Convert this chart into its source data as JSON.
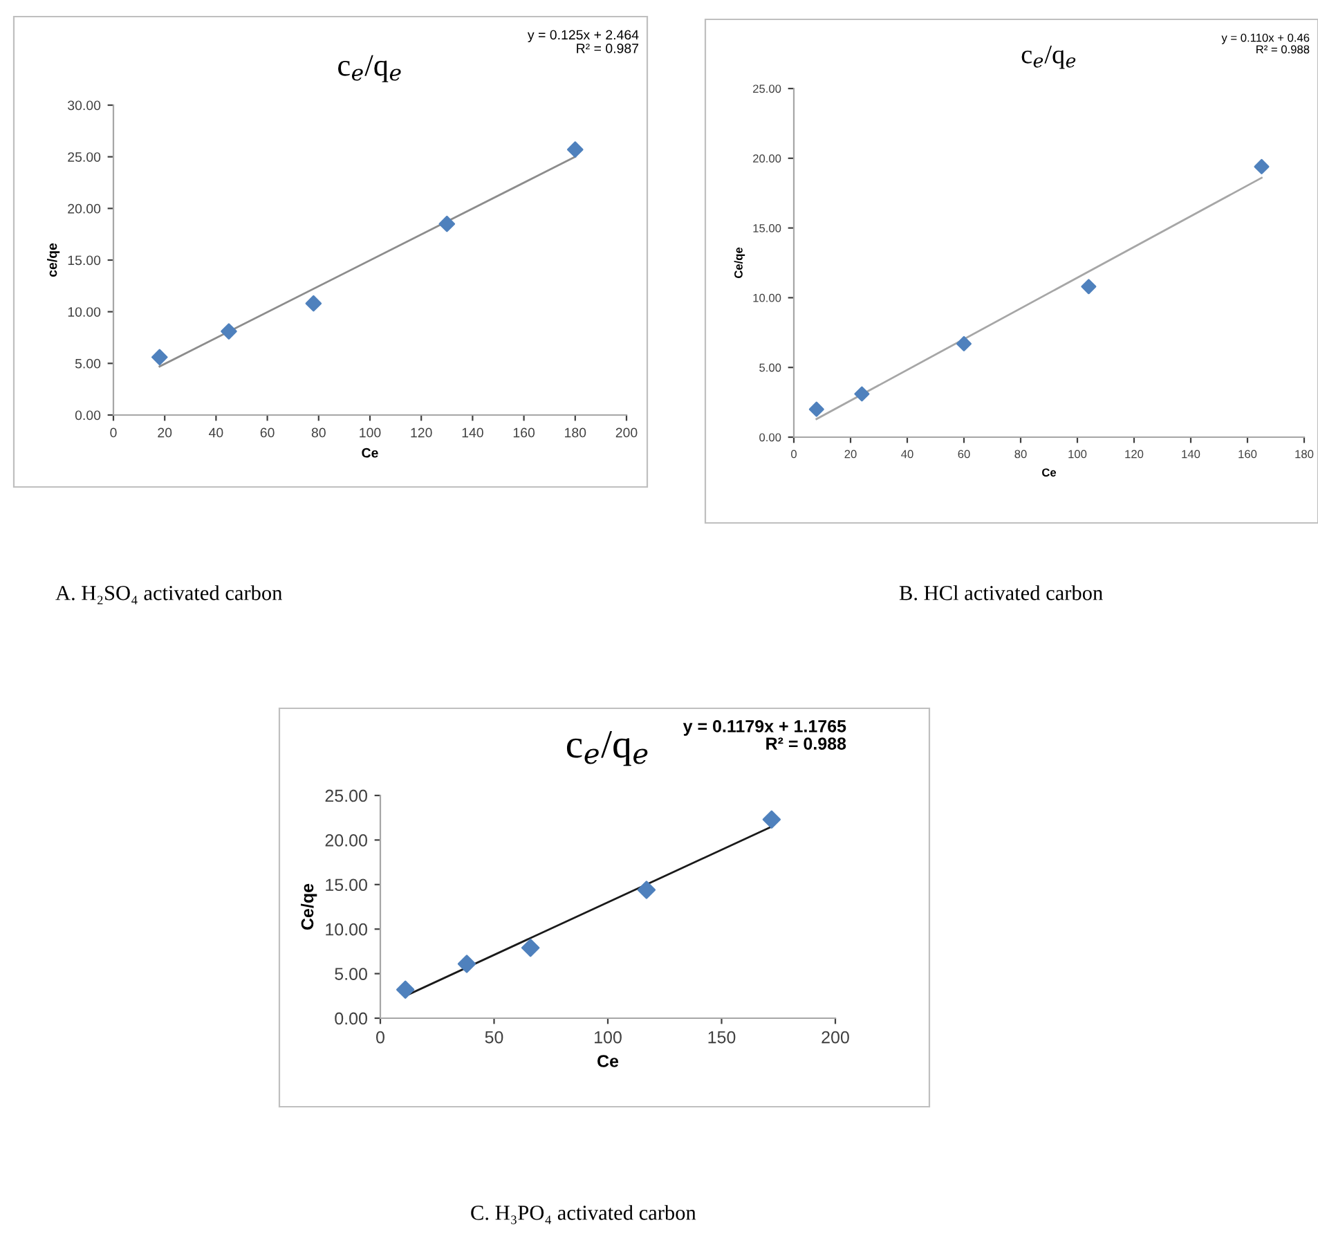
{
  "chart_data": [
    {
      "type": "scatter",
      "title": "c$_{e}$/q$_{e}$",
      "xlabel": "Ce",
      "ylabel": "ce/qe",
      "marker": "diamond",
      "grid": false,
      "x": [
        18,
        45,
        78,
        130,
        180
      ],
      "series": [
        {
          "color": "#4f81bd",
          "values": [
            5.6,
            8.1,
            10.8,
            18.5,
            25.7
          ]
        },
        {
          "type": "line",
          "color": "#8c8c8c",
          "x": [
            18,
            180
          ],
          "values": [
            4.7,
            25.0
          ],
          "marker": "none"
        }
      ],
      "xlim": [
        0,
        200
      ],
      "xticks": [
        0,
        20,
        40,
        60,
        80,
        100,
        120,
        140,
        160,
        180,
        200
      ],
      "ylim": [
        0,
        30
      ],
      "yticks": [
        {
          "value": 0,
          "label": "0.00"
        },
        {
          "value": 5,
          "label": "5.00"
        },
        {
          "value": 10,
          "label": "10.00"
        },
        {
          "value": 15,
          "label": "15.00"
        },
        {
          "value": 20,
          "label": "20.00"
        },
        {
          "value": 25,
          "label": "25.00"
        },
        {
          "value": 30,
          "label": "30.00"
        }
      ],
      "annotations": [
        "y = 0.125x + 2.464",
        "R² = 0.987",
        "A. H₂SO₄ activated carbon"
      ]
    },
    {
      "type": "scatter",
      "title": "c$_{e}$/q$_{e}$",
      "xlabel": "Ce",
      "ylabel": "Ce/qe",
      "marker": "diamond",
      "grid": false,
      "x": [
        8,
        24,
        60,
        104,
        165
      ],
      "series": [
        {
          "color": "#4f81bd",
          "values": [
            2.0,
            3.1,
            6.7,
            10.8,
            19.4
          ]
        },
        {
          "type": "line",
          "color": "#a6a6a6",
          "x": [
            8,
            165
          ],
          "values": [
            1.3,
            18.6
          ],
          "marker": "none"
        }
      ],
      "xlim": [
        0,
        180
      ],
      "xticks": [
        0,
        20,
        40,
        60,
        80,
        100,
        120,
        140,
        160,
        180
      ],
      "ylim": [
        0,
        25
      ],
      "yticks": [
        {
          "value": 0,
          "label": "0.00"
        },
        {
          "value": 5,
          "label": "5.00"
        },
        {
          "value": 10,
          "label": "10.00"
        },
        {
          "value": 15,
          "label": "15.00"
        },
        {
          "value": 20,
          "label": "20.00"
        },
        {
          "value": 25,
          "label": "25.00"
        }
      ],
      "annotations": [
        "y = 0.110x + 0.46",
        "R² = 0.988",
        "B. HCl activated carbon"
      ]
    },
    {
      "type": "scatter",
      "title": "c$_{e}$/q$_{e}$",
      "xlabel": "Ce",
      "ylabel": "Ce/qe",
      "marker": "diamond",
      "grid": false,
      "x": [
        11,
        38,
        66,
        117,
        172
      ],
      "series": [
        {
          "color": "#4f81bd",
          "values": [
            3.2,
            6.1,
            7.9,
            14.4,
            22.3
          ]
        },
        {
          "type": "line",
          "color": "#1a1a1a",
          "x": [
            11,
            172
          ],
          "values": [
            2.5,
            21.5
          ],
          "marker": "none"
        }
      ],
      "xlim": [
        0,
        200
      ],
      "xticks": [
        0,
        50,
        100,
        150,
        200
      ],
      "ylim": [
        0,
        25
      ],
      "yticks": [
        {
          "value": 0,
          "label": "0.00"
        },
        {
          "value": 5,
          "label": "5.00"
        },
        {
          "value": 10,
          "label": "10.00"
        },
        {
          "value": 15,
          "label": "15.00"
        },
        {
          "value": 20,
          "label": "20.00"
        },
        {
          "value": 25,
          "label": "25.00"
        }
      ],
      "annotations": [
        "y = 0.1179x + 1.1765",
        "R² = 0.988",
        "C. H₃PO₄ activated carbon"
      ]
    }
  ]
}
